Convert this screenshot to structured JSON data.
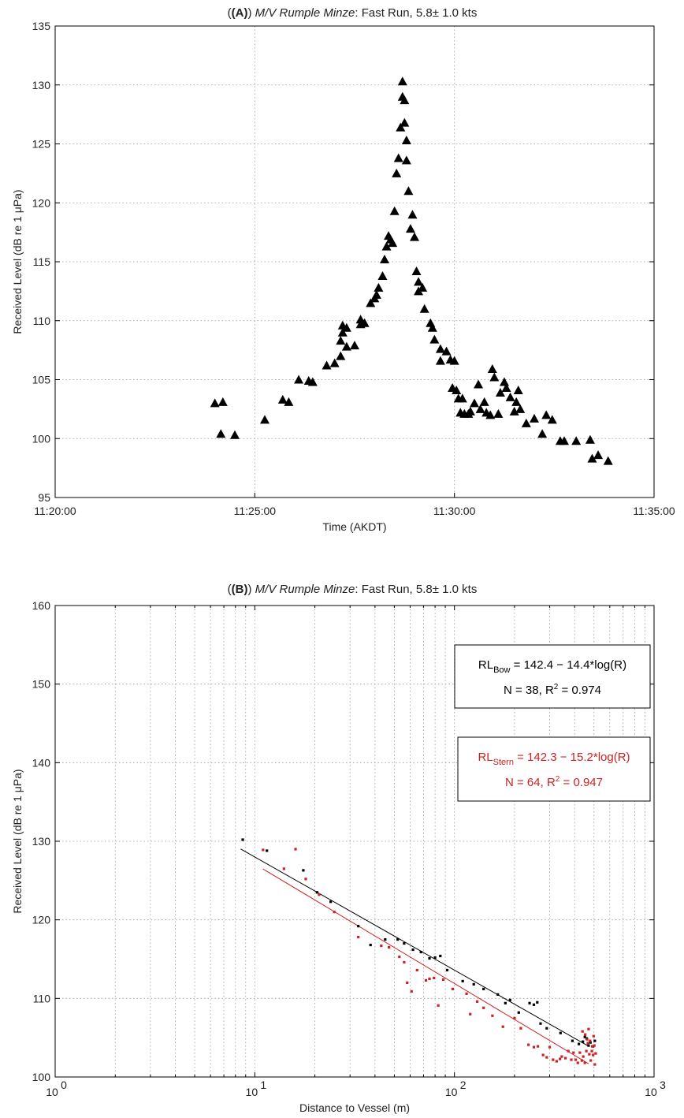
{
  "chart_data": [
    {
      "type": "scatter",
      "title_panel": "(A)",
      "title_vessel": "M/V Rumple Minze",
      "title_rest": ": Fast Run, 5.8± 1.0 kts",
      "xlabel": "Time (AKDT)",
      "ylabel": "Received Level (dB re 1 μPa)",
      "xlim_minutes": [
        0,
        15
      ],
      "xticks": [
        "11:20:00",
        "11:25:00",
        "11:30:00",
        "11:35:00"
      ],
      "ylim": [
        95,
        135
      ],
      "yticks": [
        95,
        100,
        105,
        110,
        115,
        120,
        125,
        130,
        135
      ],
      "grid": true,
      "marker": "triangle",
      "series": [
        {
          "points": [
            [
              "11:24:00",
              103.0
            ],
            [
              "11:24:12",
              103.1
            ],
            [
              "11:24:09",
              100.4
            ],
            [
              "11:24:30",
              100.3
            ],
            [
              "11:25:15",
              101.6
            ],
            [
              "11:25:42",
              103.3
            ],
            [
              "11:25:51",
              103.1
            ],
            [
              "11:26:06",
              105.0
            ],
            [
              "11:26:21",
              104.9
            ],
            [
              "11:26:27",
              104.8
            ],
            [
              "11:26:48",
              106.2
            ],
            [
              "11:27:00",
              106.4
            ],
            [
              "11:27:09",
              107.0
            ],
            [
              "11:27:09",
              108.3
            ],
            [
              "11:27:12",
              109.0
            ],
            [
              "11:27:12",
              109.6
            ],
            [
              "11:27:18",
              109.4
            ],
            [
              "11:27:18",
              107.8
            ],
            [
              "11:27:30",
              107.9
            ],
            [
              "11:27:39",
              109.7
            ],
            [
              "11:27:39",
              110.1
            ],
            [
              "11:27:45",
              109.8
            ],
            [
              "11:27:54",
              111.5
            ],
            [
              "11:28:00",
              111.9
            ],
            [
              "11:28:03",
              112.2
            ],
            [
              "11:28:06",
              112.8
            ],
            [
              "11:28:12",
              113.8
            ],
            [
              "11:28:15",
              115.2
            ],
            [
              "11:28:18",
              116.3
            ],
            [
              "11:28:21",
              117.2
            ],
            [
              "11:28:24",
              116.9
            ],
            [
              "11:28:27",
              116.6
            ],
            [
              "11:28:30",
              119.3
            ],
            [
              "11:28:33",
              122.5
            ],
            [
              "11:28:36",
              123.8
            ],
            [
              "11:28:39",
              126.4
            ],
            [
              "11:28:42",
              129.0
            ],
            [
              "11:28:42",
              130.3
            ],
            [
              "11:28:45",
              128.7
            ],
            [
              "11:28:45",
              126.8
            ],
            [
              "11:28:48",
              125.3
            ],
            [
              "11:28:48",
              123.6
            ],
            [
              "11:28:51",
              121.0
            ],
            [
              "11:28:54",
              117.8
            ],
            [
              "11:28:57",
              119.0
            ],
            [
              "11:29:00",
              117.1
            ],
            [
              "11:29:03",
              114.2
            ],
            [
              "11:29:06",
              113.3
            ],
            [
              "11:29:06",
              112.5
            ],
            [
              "11:29:12",
              112.8
            ],
            [
              "11:29:15",
              111.0
            ],
            [
              "11:29:24",
              109.8
            ],
            [
              "11:29:27",
              109.4
            ],
            [
              "11:29:30",
              108.4
            ],
            [
              "11:29:39",
              107.6
            ],
            [
              "11:29:39",
              106.6
            ],
            [
              "11:29:48",
              107.4
            ],
            [
              "11:29:54",
              106.7
            ],
            [
              "11:30:00",
              106.6
            ],
            [
              "11:29:57",
              104.3
            ],
            [
              "11:30:03",
              104.1
            ],
            [
              "11:30:06",
              103.4
            ],
            [
              "11:30:09",
              102.2
            ],
            [
              "11:30:12",
              103.4
            ],
            [
              "11:30:15",
              102.1
            ],
            [
              "11:30:21",
              102.1
            ],
            [
              "11:30:24",
              102.3
            ],
            [
              "11:30:30",
              103.0
            ],
            [
              "11:30:36",
              104.6
            ],
            [
              "11:30:39",
              102.5
            ],
            [
              "11:30:45",
              103.1
            ],
            [
              "11:30:48",
              102.2
            ],
            [
              "11:30:54",
              102.0
            ],
            [
              "11:30:57",
              105.9
            ],
            [
              "11:31:00",
              105.2
            ],
            [
              "11:31:06",
              102.1
            ],
            [
              "11:31:09",
              103.9
            ],
            [
              "11:31:15",
              104.8
            ],
            [
              "11:31:18",
              104.3
            ],
            [
              "11:31:24",
              103.5
            ],
            [
              "11:31:30",
              102.3
            ],
            [
              "11:31:33",
              103.1
            ],
            [
              "11:31:36",
              104.1
            ],
            [
              "11:31:39",
              102.5
            ],
            [
              "11:31:48",
              101.3
            ],
            [
              "11:32:00",
              101.7
            ],
            [
              "11:32:12",
              100.4
            ],
            [
              "11:32:18",
              102.0
            ],
            [
              "11:32:27",
              101.6
            ],
            [
              "11:32:39",
              99.8
            ],
            [
              "11:32:45",
              99.8
            ],
            [
              "11:33:03",
              99.8
            ],
            [
              "11:33:24",
              99.9
            ],
            [
              "11:33:27",
              98.3
            ],
            [
              "11:33:36",
              98.6
            ],
            [
              "11:33:51",
              98.1
            ]
          ]
        }
      ]
    },
    {
      "type": "scatter",
      "title_panel": "(B)",
      "title_vessel": "M/V Rumple Minze",
      "title_rest": ": Fast Run, 5.8± 1.0 kts",
      "xlabel": "Distance to Vessel (m)",
      "ylabel": "Received Level (dB re 1 μPa)",
      "xscale": "log",
      "xlim": [
        1,
        1000
      ],
      "xticks": [
        "10",
        "10",
        "10",
        "10"
      ],
      "xtick_exponents": [
        "0",
        "1",
        "2",
        "3"
      ],
      "ylim": [
        100,
        160
      ],
      "yticks": [
        100,
        110,
        120,
        130,
        140,
        150,
        160
      ],
      "grid": true,
      "legend_placement": "right",
      "series": [
        {
          "color": "#000000",
          "fit": {
            "intercept": 142.4,
            "slope": -14.4,
            "x_range": [
              8.5,
              470
            ]
          },
          "equation": {
            "lhs": "RL",
            "sub": "Bow",
            "rhs": " = 142.4 − 14.4*log(R)",
            "stats_a": "N = 38, R",
            "stats_sup": "2",
            "stats_b": " = 0.974"
          },
          "points": [
            [
              8.7,
              130.2
            ],
            [
              11.5,
              128.8
            ],
            [
              17.5,
              126.3
            ],
            [
              20.5,
              123.5
            ],
            [
              24,
              122.3
            ],
            [
              33,
              119.2
            ],
            [
              38,
              116.8
            ],
            [
              45,
              117.5
            ],
            [
              52,
              117.5
            ],
            [
              56,
              117.0
            ],
            [
              62,
              116.2
            ],
            [
              68,
              115.9
            ],
            [
              75,
              115.1
            ],
            [
              80,
              115.2
            ],
            [
              85,
              115.4
            ],
            [
              92,
              113.6
            ],
            [
              110,
              112.2
            ],
            [
              125,
              111.8
            ],
            [
              140,
              111.2
            ],
            [
              165,
              110.5
            ],
            [
              180,
              109.4
            ],
            [
              190,
              109.8
            ],
            [
              210,
              108.2
            ],
            [
              238,
              109.4
            ],
            [
              250,
              109.2
            ],
            [
              260,
              109.5
            ],
            [
              270,
              106.8
            ],
            [
              290,
              106.2
            ],
            [
              340,
              105.6
            ],
            [
              390,
              104.6
            ],
            [
              420,
              104.2
            ],
            [
              440,
              104.5
            ],
            [
              450,
              105.1
            ],
            [
              460,
              104.9
            ],
            [
              470,
              104.0
            ],
            [
              480,
              104.4
            ],
            [
              495,
              103.9
            ],
            [
              505,
              104.6
            ]
          ]
        },
        {
          "color": "#cc2222",
          "fit": {
            "intercept": 142.3,
            "slope": -15.2,
            "x_range": [
              11,
              470
            ]
          },
          "equation": {
            "lhs": "RL",
            "sub": "Stern",
            "rhs": " = 142.3 − 15.2*log(R)",
            "stats_a": "N = 64, R",
            "stats_sup": "2",
            "stats_b": " = 0.947"
          },
          "points": [
            [
              11,
              128.9
            ],
            [
              14,
              126.5
            ],
            [
              16,
              129.0
            ],
            [
              18,
              125.2
            ],
            [
              21,
              123.2
            ],
            [
              25,
              121.0
            ],
            [
              33,
              117.8
            ],
            [
              43,
              116.7
            ],
            [
              47,
              116.5
            ],
            [
              53,
              115.3
            ],
            [
              56,
              114.6
            ],
            [
              58,
              112.0
            ],
            [
              61,
              110.9
            ],
            [
              65,
              113.6
            ],
            [
              72,
              112.3
            ],
            [
              75,
              112.5
            ],
            [
              79,
              112.6
            ],
            [
              83,
              109.1
            ],
            [
              88,
              112.4
            ],
            [
              98,
              111.2
            ],
            [
              115,
              110.6
            ],
            [
              120,
              108.0
            ],
            [
              130,
              109.6
            ],
            [
              140,
              108.8
            ],
            [
              155,
              107.8
            ],
            [
              175,
              106.4
            ],
            [
              200,
              107.5
            ],
            [
              215,
              106.2
            ],
            [
              235,
              104.1
            ],
            [
              250,
              103.8
            ],
            [
              262,
              103.9
            ],
            [
              278,
              102.8
            ],
            [
              290,
              102.5
            ],
            [
              300,
              103.8
            ],
            [
              312,
              102.2
            ],
            [
              325,
              102.0
            ],
            [
              338,
              102.3
            ],
            [
              345,
              102.6
            ],
            [
              360,
              102.4
            ],
            [
              372,
              103.3
            ],
            [
              385,
              102.2
            ],
            [
              395,
              103.1
            ],
            [
              405,
              102.2
            ],
            [
              415,
              101.8
            ],
            [
              425,
              103.1
            ],
            [
              435,
              102.1
            ],
            [
              442,
              102.6
            ],
            [
              450,
              101.8
            ],
            [
              458,
              103.3
            ],
            [
              466,
              104.3
            ],
            [
              474,
              102.9
            ],
            [
              482,
              102.1
            ],
            [
              490,
              103.9
            ],
            [
              498,
              105.2
            ],
            [
              505,
              101.6
            ],
            [
              438,
              105.8
            ],
            [
              452,
              105.4
            ],
            [
              462,
              104.8
            ],
            [
              470,
              106.1
            ],
            [
              478,
              104.6
            ],
            [
              488,
              103.3
            ],
            [
              495,
              102.8
            ],
            [
              502,
              104.0
            ],
            [
              510,
              103.0
            ]
          ]
        }
      ]
    }
  ]
}
